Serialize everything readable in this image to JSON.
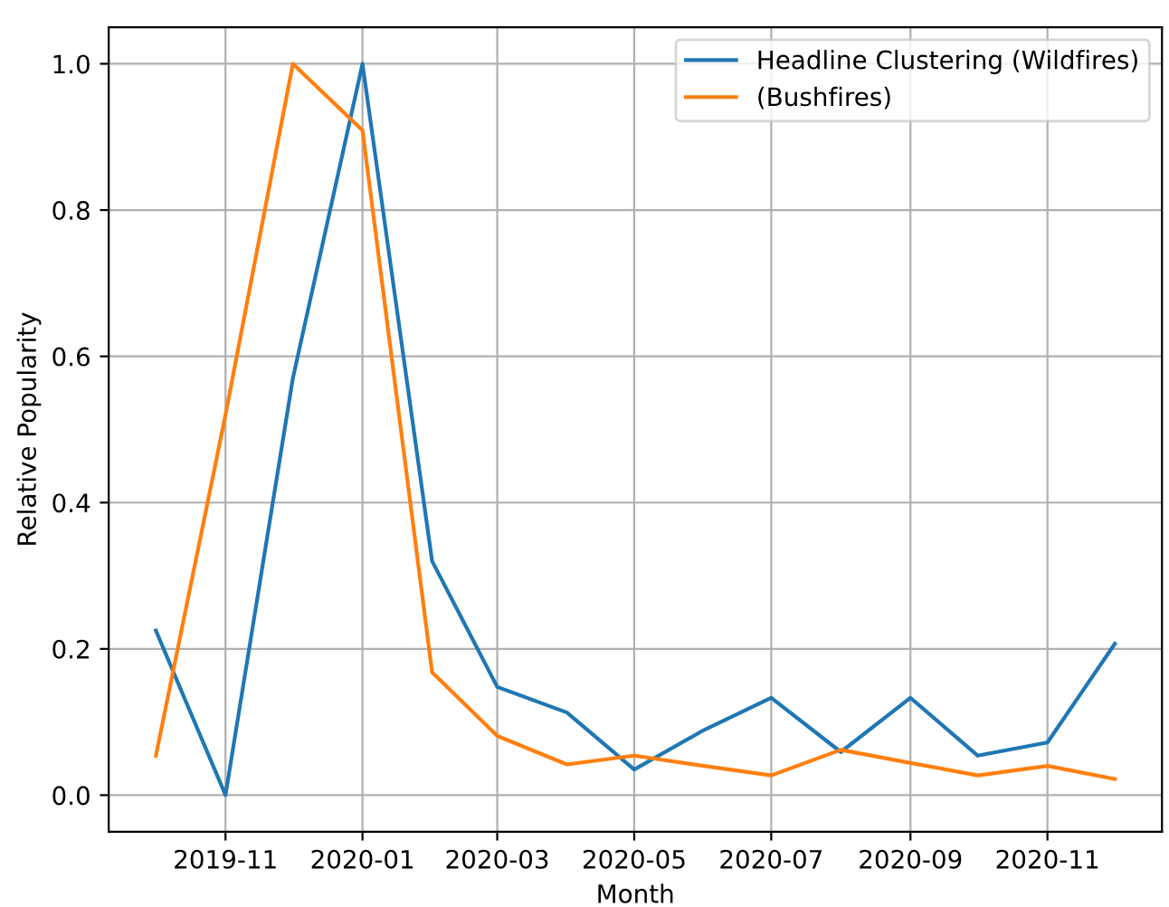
{
  "chart_data": {
    "type": "line",
    "xlabel": "Month",
    "ylabel": "Relative Popularity",
    "x": [
      "2019-10",
      "2019-11",
      "2019-12",
      "2020-01",
      "2020-02",
      "2020-03",
      "2020-04",
      "2020-05",
      "2020-06",
      "2020-07",
      "2020-08",
      "2020-09",
      "2020-10",
      "2020-11",
      "2020-12"
    ],
    "series": [
      {
        "name": "Headline Clustering (Wildfires)",
        "color": "#1f77b4",
        "values": [
          0.225,
          0.0,
          0.57,
          1.0,
          0.32,
          0.148,
          0.113,
          0.035,
          0.089,
          0.133,
          0.059,
          0.133,
          0.054,
          0.072,
          0.207
        ]
      },
      {
        "name": "(Bushfires)",
        "color": "#ff7f0e",
        "values": [
          0.054,
          0.52,
          1.0,
          0.909,
          0.168,
          0.081,
          0.042,
          0.054,
          0.04,
          0.027,
          0.062,
          0.044,
          0.027,
          0.04,
          0.022
        ]
      }
    ],
    "xlim": [
      "2019-09-10",
      "2020-12-22"
    ],
    "xticks": [
      "2019-11",
      "2020-01",
      "2020-03",
      "2020-05",
      "2020-07",
      "2020-09",
      "2020-11"
    ],
    "ylim": [
      -0.05,
      1.05
    ],
    "yticks": [
      {
        "value": 0,
        "label": "0.0"
      },
      {
        "value": 0.2,
        "label": "0.2"
      },
      {
        "value": 0.4,
        "label": "0.4"
      },
      {
        "value": 0.6,
        "label": "0.6"
      },
      {
        "value": 0.8,
        "label": "0.8"
      },
      {
        "value": 1.0,
        "label": "1.0"
      }
    ],
    "grid": true,
    "legend": "top right",
    "marker": "none",
    "line_style": "solid"
  }
}
